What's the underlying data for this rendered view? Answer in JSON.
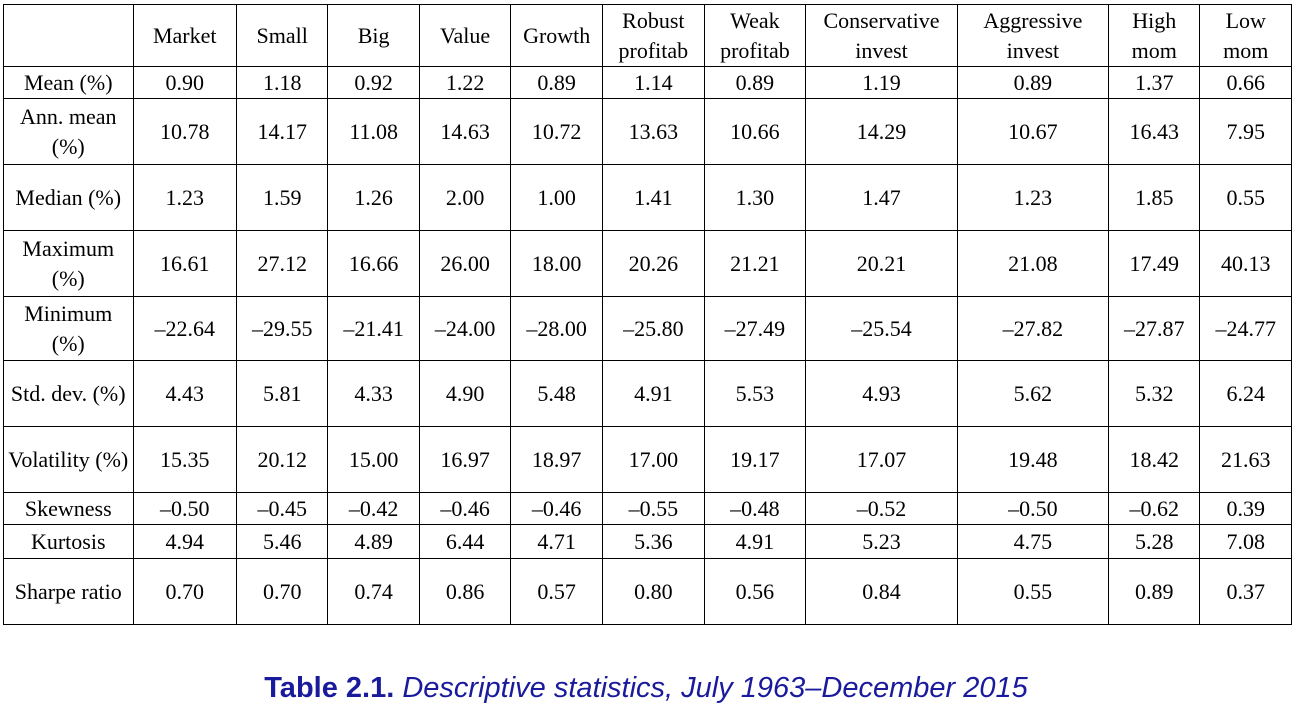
{
  "table": {
    "columns": [
      "",
      "Market",
      "Small",
      "Big",
      "Value",
      "Growth",
      "Robust profitab",
      "Weak profitab",
      "Conservative invest",
      "Aggressive invest",
      "High mom",
      "Low mom"
    ],
    "rows": [
      {
        "label": "Mean (%)",
        "values": [
          "0.90",
          "1.18",
          "0.92",
          "1.22",
          "0.89",
          "1.14",
          "0.89",
          "1.19",
          "0.89",
          "1.37",
          "0.66"
        ]
      },
      {
        "label": "Ann. mean (%)",
        "values": [
          "10.78",
          "14.17",
          "11.08",
          "14.63",
          "10.72",
          "13.63",
          "10.66",
          "14.29",
          "10.67",
          "16.43",
          "7.95"
        ]
      },
      {
        "label": "Median (%)",
        "values": [
          "1.23",
          "1.59",
          "1.26",
          "2.00",
          "1.00",
          "1.41",
          "1.30",
          "1.47",
          "1.23",
          "1.85",
          "0.55"
        ]
      },
      {
        "label": "Maximum (%)",
        "values": [
          "16.61",
          "27.12",
          "16.66",
          "26.00",
          "18.00",
          "20.26",
          "21.21",
          "20.21",
          "21.08",
          "17.49",
          "40.13"
        ]
      },
      {
        "label": "Minimum (%)",
        "values": [
          "–22.64",
          "–29.55",
          "–21.41",
          "–24.00",
          "–28.00",
          "–25.80",
          "–27.49",
          "–25.54",
          "–27.82",
          "–27.87",
          "–24.77"
        ]
      },
      {
        "label": "Std. dev. (%)",
        "values": [
          "4.43",
          "5.81",
          "4.33",
          "4.90",
          "5.48",
          "4.91",
          "5.53",
          "4.93",
          "5.62",
          "5.32",
          "6.24"
        ]
      },
      {
        "label": "Volatility (%)",
        "values": [
          "15.35",
          "20.12",
          "15.00",
          "16.97",
          "18.97",
          "17.00",
          "19.17",
          "17.07",
          "19.48",
          "18.42",
          "21.63"
        ]
      },
      {
        "label": "Skewness",
        "values": [
          "–0.50",
          "–0.45",
          "–0.42",
          "–0.46",
          "–0.46",
          "–0.55",
          "–0.48",
          "–0.52",
          "–0.50",
          "–0.62",
          "0.39"
        ]
      },
      {
        "label": "Kurtosis",
        "values": [
          "4.94",
          "5.46",
          "4.89",
          "6.44",
          "4.71",
          "5.36",
          "4.91",
          "5.23",
          "4.75",
          "5.28",
          "7.08"
        ]
      },
      {
        "label": "Sharpe ratio",
        "values": [
          "0.70",
          "0.70",
          "0.74",
          "0.86",
          "0.57",
          "0.80",
          "0.56",
          "0.84",
          "0.55",
          "0.89",
          "0.37"
        ]
      }
    ]
  },
  "caption": {
    "number": "Table 2.1.",
    "text": "Descriptive statistics, July 1963–December 2015"
  },
  "colors": {
    "caption": "#1a1a9c",
    "border": "#000000"
  }
}
